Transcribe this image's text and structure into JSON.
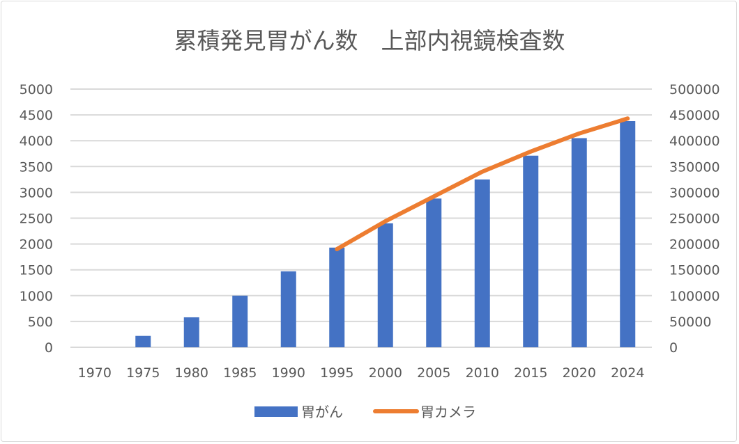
{
  "chart_data": {
    "type": "bar+line",
    "title": "累積発見胃がん数　上部内視鏡検査数",
    "categories": [
      "1970",
      "1975",
      "1980",
      "1985",
      "1990",
      "1995",
      "2000",
      "2005",
      "2010",
      "2015",
      "2020",
      "2024"
    ],
    "series": [
      {
        "name": "胃がん",
        "type": "bar",
        "axis": "left",
        "color": "#4472c4",
        "values": [
          0,
          220,
          580,
          1000,
          1470,
          1930,
          2400,
          2880,
          3250,
          3710,
          4050,
          4380
        ]
      },
      {
        "name": "胃カメラ",
        "type": "line",
        "axis": "right",
        "color": "#ed7d31",
        "values": [
          null,
          null,
          null,
          null,
          null,
          190000,
          244000,
          292000,
          340000,
          379000,
          414000,
          443000
        ]
      }
    ],
    "y_left": {
      "min": 0,
      "max": 5000,
      "ticks": [
        "0",
        "500",
        "1000",
        "1500",
        "2000",
        "2500",
        "3000",
        "3500",
        "4000",
        "4500",
        "5000"
      ]
    },
    "y_right": {
      "min": 0,
      "max": 500000,
      "ticks": [
        "0",
        "50000",
        "100000",
        "150000",
        "200000",
        "250000",
        "300000",
        "350000",
        "400000",
        "450000",
        "500000"
      ]
    },
    "grid": true,
    "legend": "bottom"
  }
}
